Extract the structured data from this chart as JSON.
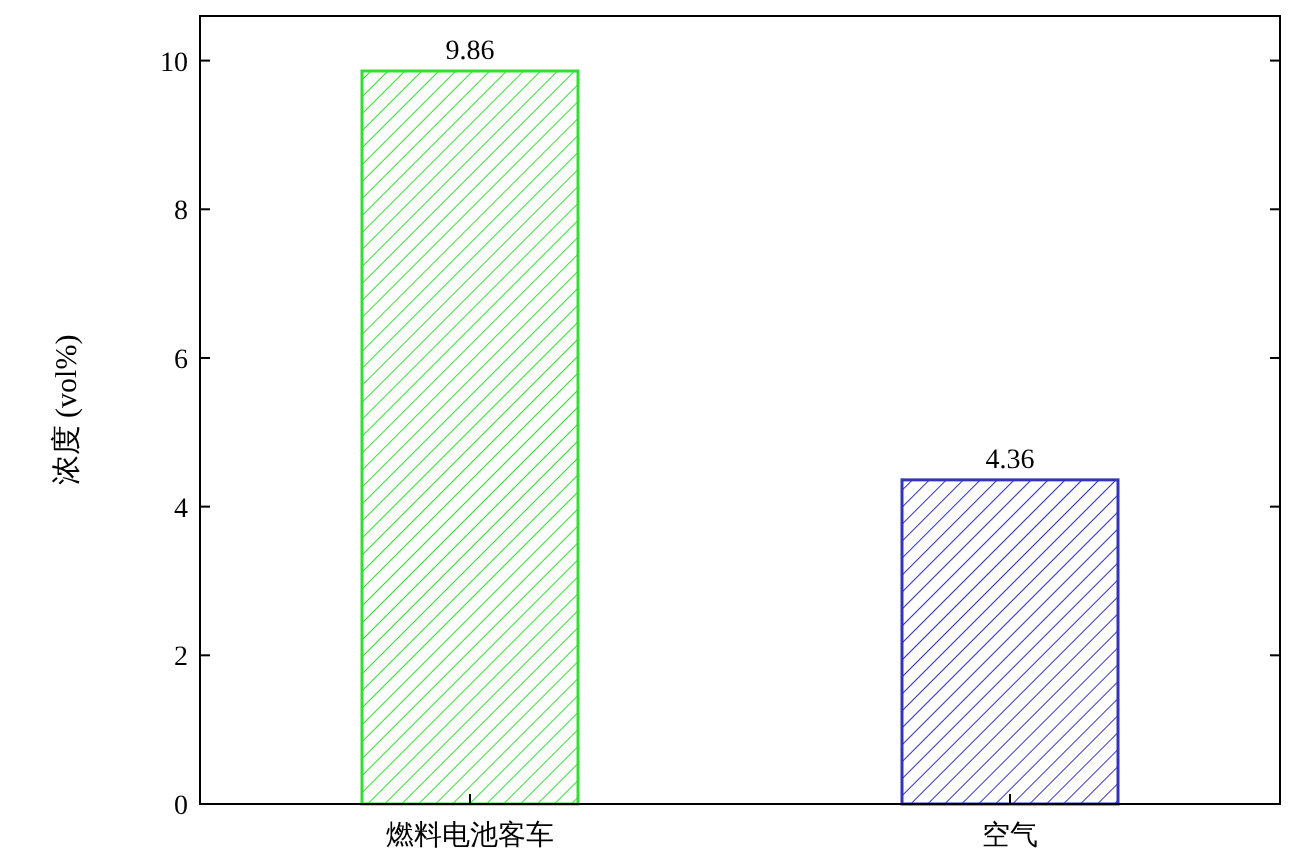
{
  "chart_data": {
    "type": "bar",
    "ylabel": "浓度 (vol%)",
    "categories": [
      "燃料电池客车",
      "空气"
    ],
    "values": [
      9.86,
      4.36
    ],
    "colors": [
      "#33dd33",
      "#3333bb"
    ],
    "ylim": [
      0,
      10.6
    ],
    "yticks": [
      0,
      2,
      4,
      6,
      8,
      10
    ],
    "data_labels": true
  }
}
